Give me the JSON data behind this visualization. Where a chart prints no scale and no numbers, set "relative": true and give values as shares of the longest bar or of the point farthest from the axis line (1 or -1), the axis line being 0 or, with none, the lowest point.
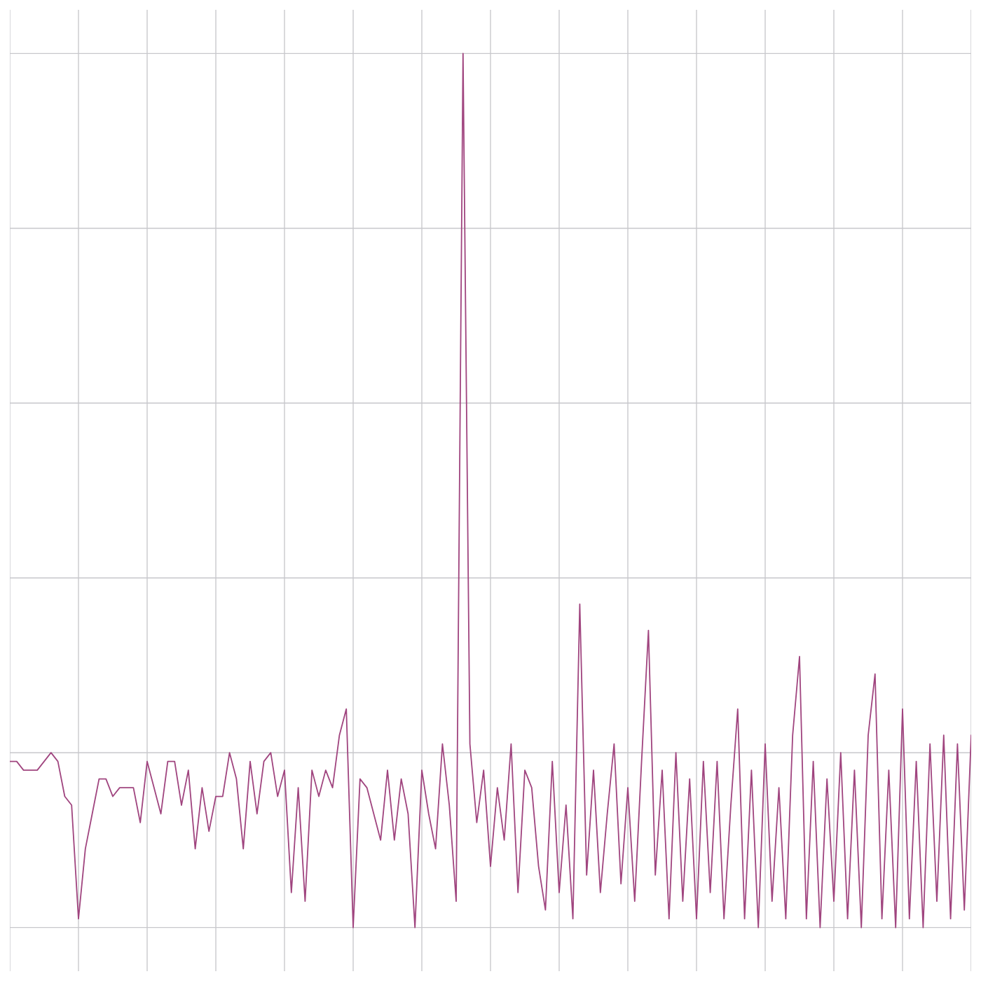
{
  "chart_data": {
    "type": "line",
    "relative": true,
    "grid": true,
    "color": "#a0457f",
    "categories": [
      null,
      null,
      null,
      null,
      null,
      null,
      null,
      null,
      null,
      null,
      null,
      null,
      null,
      null,
      null,
      null,
      null,
      null,
      null,
      null,
      null,
      null,
      null,
      null,
      null,
      null,
      null,
      null,
      null,
      null,
      null,
      null,
      null,
      null,
      null,
      null,
      null,
      null,
      null,
      null,
      null,
      null,
      null,
      null,
      null,
      null,
      null,
      null,
      null,
      null,
      null,
      null,
      null,
      null,
      null,
      null,
      null,
      null,
      null,
      null,
      null,
      null,
      null,
      null,
      null,
      null,
      null,
      null,
      null,
      null,
      null,
      null,
      null,
      null,
      null,
      null,
      null,
      null,
      null,
      null,
      null,
      null,
      null,
      null,
      null,
      null,
      null,
      null,
      null,
      null,
      null,
      null,
      null,
      null,
      null,
      null,
      null,
      null,
      null,
      null,
      null,
      null,
      null,
      null,
      null,
      null,
      null,
      null,
      null,
      null,
      null,
      null,
      null,
      null,
      null,
      null,
      null,
      null,
      null,
      null,
      null,
      null,
      null,
      null,
      null,
      null,
      null,
      null,
      null,
      null,
      null,
      null,
      null,
      null,
      null,
      null,
      null,
      null,
      null,
      null,
      null
    ],
    "values": [
      0.19,
      0.19,
      0.18,
      0.18,
      0.18,
      0.19,
      0.2,
      0.19,
      0.15,
      0.14,
      0.01,
      0.09,
      0.13,
      0.17,
      0.17,
      0.15,
      0.16,
      0.16,
      0.16,
      0.12,
      0.19,
      0.16,
      0.13,
      0.19,
      0.19,
      0.14,
      0.18,
      0.09,
      0.16,
      0.11,
      0.15,
      0.15,
      0.2,
      0.17,
      0.09,
      0.19,
      0.13,
      0.19,
      0.2,
      0.15,
      0.18,
      0.04,
      0.16,
      0.03,
      0.18,
      0.15,
      0.18,
      0.16,
      0.22,
      0.25,
      0,
      0.17,
      0.16,
      0.13,
      0.1,
      0.18,
      0.1,
      0.17,
      0.13,
      0,
      0.18,
      0.13,
      0.09,
      0.21,
      0.14,
      0.03,
      1,
      0.21,
      0.12,
      0.18,
      0.07,
      0.16,
      0.1,
      0.21,
      0.04,
      0.18,
      0.16,
      0.07,
      0.02,
      0.19,
      0.04,
      0.14,
      0.01,
      0.37,
      0.06,
      0.18,
      0.04,
      0.13,
      0.21,
      0.05,
      0.16,
      0.03,
      0.19,
      0.34,
      0.06,
      0.18,
      0.01,
      0.2,
      0.03,
      0.17,
      0.01,
      0.19,
      0.04,
      0.19,
      0.01,
      0.14,
      0.25,
      0.01,
      0.18,
      0,
      0.21,
      0.03,
      0.16,
      0.01,
      0.22,
      0.31,
      0.01,
      0.19,
      0,
      0.17,
      0.03,
      0.2,
      0.01,
      0.18,
      0,
      0.22,
      0.29,
      0.01,
      0.18,
      0,
      0.25,
      0.01,
      0.19,
      0,
      0.21,
      0.03,
      0.22,
      0.01,
      0.21,
      0.02,
      0.22
    ]
  }
}
